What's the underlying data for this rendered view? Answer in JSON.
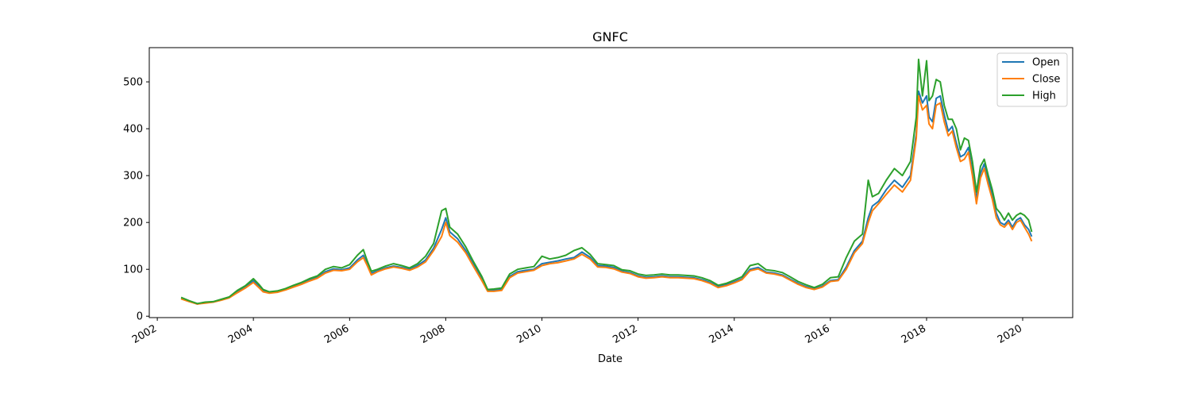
{
  "chart_data": {
    "type": "line",
    "title": "GNFC",
    "xlabel": "Date",
    "ylabel": "",
    "xlim": [
      "2001-11-01",
      "2021-01-15"
    ],
    "ylim": [
      -3,
      573
    ],
    "x_ticks": [
      "2002",
      "2004",
      "2006",
      "2008",
      "2010",
      "2012",
      "2014",
      "2016",
      "2018",
      "2020"
    ],
    "y_ticks": [
      0,
      100,
      200,
      300,
      400,
      500
    ],
    "grid": false,
    "legend_position": "top-right",
    "x": [
      "2002-07-01",
      "2002-09-01",
      "2002-11-01",
      "2003-01-01",
      "2003-03-01",
      "2003-05-01",
      "2003-07-01",
      "2003-09-01",
      "2003-11-01",
      "2004-01-01",
      "2004-02-15",
      "2004-03-15",
      "2004-05-01",
      "2004-07-01",
      "2004-09-01",
      "2004-11-01",
      "2005-01-01",
      "2005-03-01",
      "2005-05-01",
      "2005-07-01",
      "2005-09-01",
      "2005-11-01",
      "2006-01-01",
      "2006-03-01",
      "2006-04-15",
      "2006-05-15",
      "2006-06-15",
      "2006-08-01",
      "2006-10-01",
      "2006-12-01",
      "2007-02-01",
      "2007-04-01",
      "2007-06-01",
      "2007-08-01",
      "2007-10-01",
      "2007-12-01",
      "2008-01-01",
      "2008-02-01",
      "2008-04-01",
      "2008-06-01",
      "2008-08-01",
      "2008-10-01",
      "2008-11-15",
      "2009-01-01",
      "2009-03-01",
      "2009-05-01",
      "2009-07-01",
      "2009-09-01",
      "2009-11-01",
      "2010-01-01",
      "2010-03-01",
      "2010-05-01",
      "2010-07-01",
      "2010-09-01",
      "2010-11-01",
      "2011-01-01",
      "2011-03-01",
      "2011-05-01",
      "2011-07-01",
      "2011-09-01",
      "2011-11-01",
      "2012-01-01",
      "2012-03-01",
      "2012-05-01",
      "2012-07-01",
      "2012-09-01",
      "2012-11-01",
      "2013-01-01",
      "2013-03-01",
      "2013-05-01",
      "2013-07-01",
      "2013-09-01",
      "2013-11-01",
      "2014-01-01",
      "2014-03-01",
      "2014-05-01",
      "2014-07-01",
      "2014-09-01",
      "2014-11-01",
      "2015-01-01",
      "2015-03-01",
      "2015-05-01",
      "2015-07-01",
      "2015-09-01",
      "2015-11-01",
      "2016-01-01",
      "2016-03-01",
      "2016-05-01",
      "2016-07-01",
      "2016-09-01",
      "2016-10-15",
      "2016-11-15",
      "2017-01-01",
      "2017-03-01",
      "2017-05-01",
      "2017-07-01",
      "2017-09-01",
      "2017-10-15",
      "2017-11-01",
      "2017-12-01",
      "2018-01-01",
      "2018-01-20",
      "2018-02-15",
      "2018-03-15",
      "2018-04-15",
      "2018-05-15",
      "2018-06-15",
      "2018-07-15",
      "2018-08-15",
      "2018-09-15",
      "2018-10-15",
      "2018-11-15",
      "2018-12-15",
      "2019-01-15",
      "2019-02-15",
      "2019-03-15",
      "2019-04-15",
      "2019-05-15",
      "2019-06-15",
      "2019-07-15",
      "2019-08-15",
      "2019-09-15",
      "2019-10-15",
      "2019-11-15",
      "2019-12-15",
      "2020-01-15",
      "2020-02-15",
      "2020-03-10"
    ],
    "series": [
      {
        "name": "Open",
        "color": "#1f77b4",
        "values": [
          38,
          32,
          26,
          29,
          30,
          35,
          40,
          52,
          62,
          76,
          64,
          55,
          50,
          52,
          57,
          64,
          70,
          77,
          83,
          95,
          101,
          99,
          103,
          120,
          130,
          112,
          92,
          97,
          103,
          107,
          104,
          100,
          108,
          120,
          145,
          185,
          210,
          180,
          165,
          140,
          110,
          80,
          55,
          55,
          57,
          85,
          95,
          98,
          100,
          112,
          115,
          118,
          122,
          125,
          137,
          126,
          108,
          107,
          104,
          96,
          93,
          86,
          83,
          84,
          86,
          84,
          84,
          83,
          82,
          78,
          72,
          63,
          67,
          73,
          80,
          100,
          104,
          94,
          92,
          88,
          79,
          70,
          63,
          58,
          64,
          76,
          78,
          105,
          140,
          160,
          210,
          235,
          245,
          270,
          290,
          275,
          300,
          390,
          480,
          455,
          470,
          425,
          415,
          465,
          470,
          430,
          395,
          405,
          370,
          340,
          345,
          360,
          310,
          250,
          305,
          325,
          290,
          260,
          220,
          200,
          195,
          205,
          190,
          205,
          210,
          195,
          185,
          170
        ]
      },
      {
        "name": "Close",
        "color": "#ff7f0e",
        "values": [
          37,
          31,
          26,
          28,
          30,
          34,
          39,
          50,
          60,
          72,
          60,
          52,
          49,
          51,
          56,
          62,
          68,
          75,
          81,
          92,
          98,
          97,
          100,
          116,
          125,
          108,
          88,
          95,
          101,
          105,
          102,
          98,
          105,
          116,
          140,
          170,
          200,
          172,
          158,
          135,
          105,
          76,
          53,
          53,
          55,
          82,
          92,
          95,
          98,
          108,
          112,
          114,
          118,
          122,
          132,
          122,
          105,
          104,
          101,
          94,
          91,
          84,
          81,
          82,
          84,
          82,
          82,
          81,
          80,
          76,
          70,
          61,
          65,
          71,
          78,
          97,
          101,
          92,
          90,
          86,
          77,
          68,
          61,
          57,
          62,
          74,
          76,
          100,
          135,
          155,
          200,
          225,
          240,
          260,
          280,
          265,
          290,
          380,
          470,
          440,
          450,
          410,
          400,
          450,
          455,
          415,
          385,
          395,
          360,
          330,
          335,
          350,
          300,
          240,
          295,
          315,
          280,
          250,
          210,
          195,
          190,
          200,
          185,
          200,
          205,
          190,
          175,
          160
        ]
      },
      {
        "name": "High",
        "color": "#2ca02c",
        "values": [
          40,
          33,
          27,
          30,
          31,
          36,
          41,
          55,
          65,
          80,
          67,
          57,
          52,
          54,
          59,
          66,
          72,
          80,
          86,
          100,
          106,
          103,
          110,
          130,
          142,
          118,
          96,
          100,
          107,
          112,
          108,
          103,
          112,
          128,
          155,
          225,
          230,
          190,
          175,
          148,
          115,
          85,
          57,
          58,
          60,
          90,
          100,
          103,
          106,
          128,
          122,
          125,
          130,
          140,
          146,
          132,
          112,
          110,
          108,
          99,
          97,
          90,
          87,
          88,
          90,
          88,
          88,
          87,
          86,
          82,
          76,
          66,
          70,
          77,
          84,
          108,
          112,
          99,
          97,
          93,
          84,
          74,
          67,
          61,
          68,
          82,
          84,
          125,
          160,
          175,
          290,
          255,
          262,
          290,
          315,
          300,
          330,
          425,
          548,
          470,
          545,
          460,
          470,
          505,
          500,
          450,
          420,
          420,
          400,
          355,
          380,
          375,
          330,
          265,
          320,
          335,
          300,
          270,
          230,
          220,
          205,
          220,
          205,
          215,
          220,
          215,
          205,
          180
        ]
      }
    ]
  }
}
